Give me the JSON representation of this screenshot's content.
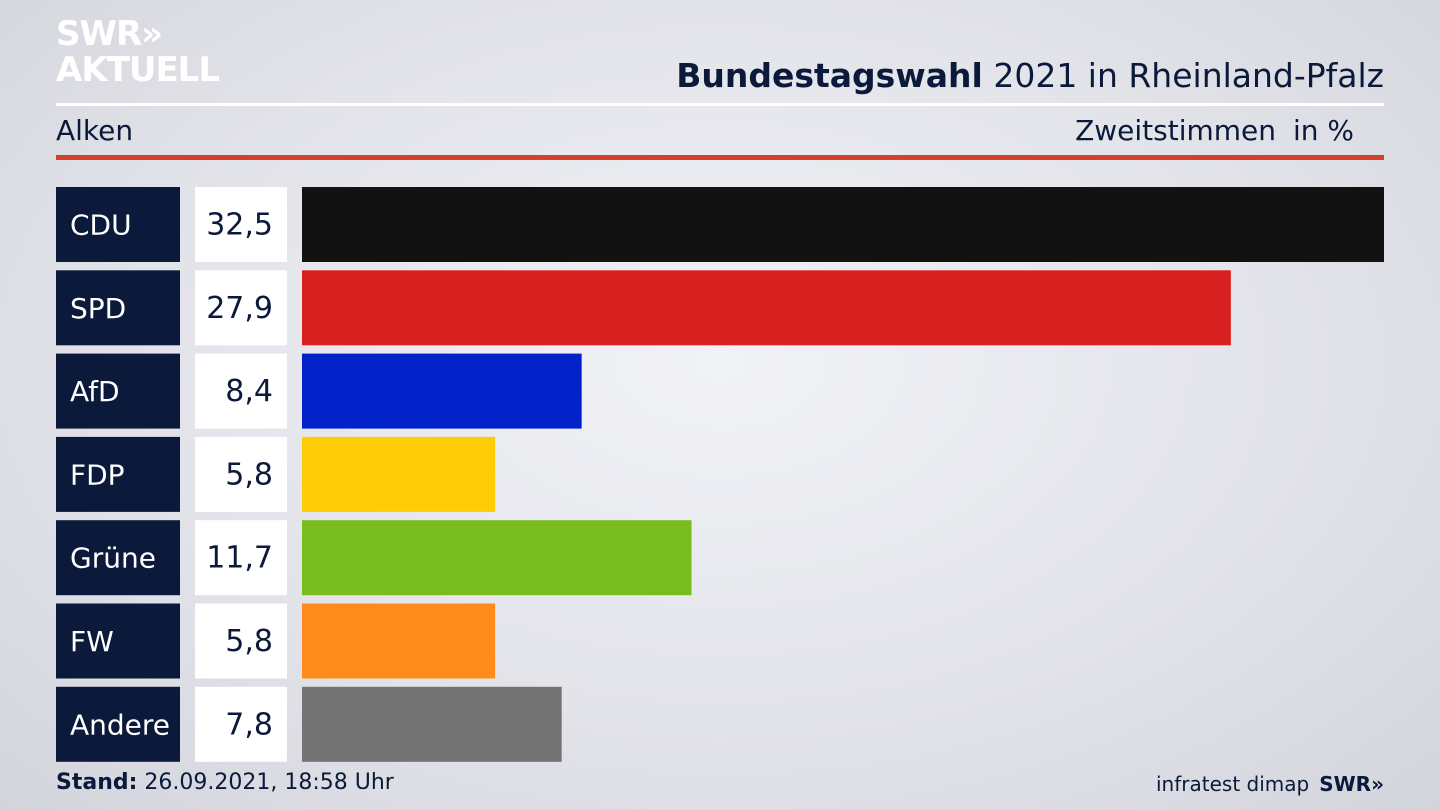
{
  "logo": {
    "line1": "SWR»",
    "line2": "AKTUELL"
  },
  "header": {
    "title_bold": "Bundestagswahl",
    "title_rest": " 2021 in Rheinland-Pfalz",
    "region": "Alken",
    "measure": "Zweitstimmen",
    "unit": "in %"
  },
  "chart_data": {
    "type": "bar",
    "orientation": "horizontal",
    "title": "Bundestagswahl 2021 in Rheinland-Pfalz",
    "categories": [
      "CDU",
      "SPD",
      "AfD",
      "FDP",
      "Grüne",
      "FW",
      "Andere"
    ],
    "values": [
      32.5,
      27.9,
      8.4,
      5.8,
      11.7,
      5.8,
      7.8
    ],
    "value_labels": [
      "32,5",
      "27,9",
      "8,4",
      "5,8",
      "11,7",
      "5,8",
      "7,8"
    ],
    "colors": [
      "#121212",
      "#d82020",
      "#0022c8",
      "#ffcc08",
      "#78bc1e",
      "#ff8c1a",
      "#737373"
    ],
    "xlim": [
      0,
      32.5
    ],
    "grid": false,
    "legend": "none"
  },
  "footer": {
    "stand_label": "Stand:",
    "stand_value": " 26.09.2021, 18:58 Uhr",
    "source": "infratest dimap",
    "brand": "SWR»"
  }
}
